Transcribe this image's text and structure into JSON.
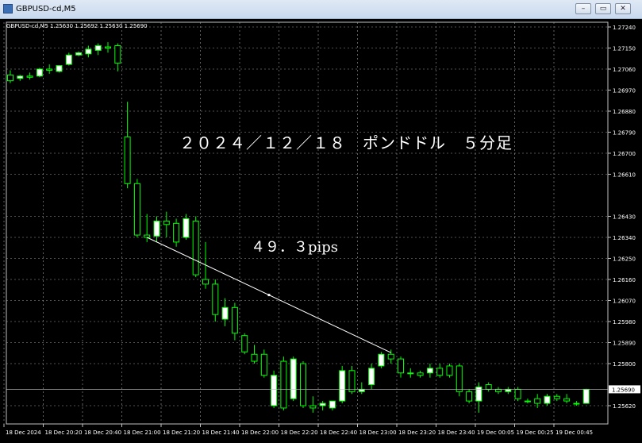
{
  "window": {
    "title": "GBPUSD-cd,M5",
    "buttons": [
      "minimize",
      "restore",
      "close"
    ]
  },
  "chart": {
    "info_line": "GBPUSD-cd,M5  1.25630 1.25692 1.25630 1.25690",
    "annotation_title": "２０２４／１２／１８　ポンドドル　５分足",
    "annotation_pips": "４９．３pips",
    "current_price": "1.25690",
    "colors": {
      "background": "#000000",
      "grid": "#a0a0a0",
      "bull": "#ffffff",
      "bear": "#000000",
      "wick": "#00ff00",
      "text": "#ffffff",
      "trendline": "#ffffff"
    }
  },
  "chart_data": {
    "type": "candlestick",
    "symbol": "GBPUSD-cd",
    "timeframe": "M5",
    "ylim": [
      1.2555,
      1.2728
    ],
    "price_ticks": [
      "1.27240",
      "1.27150",
      "1.27060",
      "1.26970",
      "1.26880",
      "1.26790",
      "1.26700",
      "1.26610",
      "1.26430",
      "1.26340",
      "1.26250",
      "1.26160",
      "1.26070",
      "1.25980",
      "1.25890",
      "1.25800",
      "1.25620"
    ],
    "time_labels": [
      "18 Dec 2024",
      "18 Dec 20:20",
      "18 Dec 20:40",
      "18 Dec 21:00",
      "18 Dec 21:20",
      "18 Dec 21:40",
      "18 Dec 22:00",
      "18 Dec 22:20",
      "18 Dec 22:40",
      "18 Dec 23:00",
      "18 Dec 23:20",
      "18 Dec 23:40",
      "19 Dec 00:05",
      "19 Dec 00:25",
      "19 Dec 00:45"
    ],
    "candles": [
      {
        "o": 1.27035,
        "h": 1.27055,
        "c": 1.2701,
        "l": 1.27
      },
      {
        "o": 1.2702,
        "h": 1.27035,
        "c": 1.2703,
        "l": 1.2701
      },
      {
        "o": 1.2703,
        "h": 1.27045,
        "c": 1.27025,
        "l": 1.27015
      },
      {
        "o": 1.2703,
        "h": 1.27065,
        "c": 1.2706,
        "l": 1.27025
      },
      {
        "o": 1.2706,
        "h": 1.2708,
        "c": 1.27055,
        "l": 1.2704
      },
      {
        "o": 1.2705,
        "h": 1.27075,
        "c": 1.27075,
        "l": 1.27045
      },
      {
        "o": 1.2708,
        "h": 1.2713,
        "c": 1.2712,
        "l": 1.27075
      },
      {
        "o": 1.2712,
        "h": 1.27135,
        "c": 1.2713,
        "l": 1.27115
      },
      {
        "o": 1.27125,
        "h": 1.2716,
        "c": 1.27145,
        "l": 1.2711
      },
      {
        "o": 1.2714,
        "h": 1.2717,
        "c": 1.2716,
        "l": 1.2712
      },
      {
        "o": 1.27155,
        "h": 1.27175,
        "c": 1.2715,
        "l": 1.2713
      },
      {
        "o": 1.2716,
        "h": 1.2717,
        "c": 1.27085,
        "l": 1.2705
      },
      {
        "o": 1.2677,
        "h": 1.2692,
        "c": 1.2657,
        "l": 1.2655
      },
      {
        "o": 1.2657,
        "h": 1.2659,
        "c": 1.2635,
        "l": 1.2634
      },
      {
        "o": 1.2635,
        "h": 1.2644,
        "c": 1.2634,
        "l": 1.2632
      },
      {
        "o": 1.26345,
        "h": 1.2643,
        "c": 1.2641,
        "l": 1.2632
      },
      {
        "o": 1.2641,
        "h": 1.2645,
        "c": 1.26395,
        "l": 1.2634
      },
      {
        "o": 1.264,
        "h": 1.2642,
        "c": 1.2632,
        "l": 1.263
      },
      {
        "o": 1.2634,
        "h": 1.2644,
        "c": 1.2642,
        "l": 1.2633
      },
      {
        "o": 1.2641,
        "h": 1.2643,
        "c": 1.2618,
        "l": 1.2617
      },
      {
        "o": 1.2616,
        "h": 1.2632,
        "c": 1.2614,
        "l": 1.2612
      },
      {
        "o": 1.2614,
        "h": 1.2616,
        "c": 1.2601,
        "l": 1.2598
      },
      {
        "o": 1.2599,
        "h": 1.2608,
        "c": 1.2604,
        "l": 1.2596
      },
      {
        "o": 1.2604,
        "h": 1.2606,
        "c": 1.2593,
        "l": 1.259
      },
      {
        "o": 1.2592,
        "h": 1.2593,
        "c": 1.2585,
        "l": 1.2584
      },
      {
        "o": 1.2584,
        "h": 1.2588,
        "c": 1.2581,
        "l": 1.258
      },
      {
        "o": 1.2584,
        "h": 1.2586,
        "c": 1.2575,
        "l": 1.2574
      },
      {
        "o": 1.2562,
        "h": 1.2577,
        "c": 1.2575,
        "l": 1.2561
      },
      {
        "o": 1.2581,
        "h": 1.2583,
        "c": 1.2561,
        "l": 1.256
      },
      {
        "o": 1.2565,
        "h": 1.2583,
        "c": 1.2582,
        "l": 1.2564
      },
      {
        "o": 1.258,
        "h": 1.2581,
        "c": 1.2562,
        "l": 1.2561
      },
      {
        "o": 1.2562,
        "h": 1.2566,
        "c": 1.2561,
        "l": 1.2559
      },
      {
        "o": 1.2562,
        "h": 1.2564,
        "c": 1.2563,
        "l": 1.256
      },
      {
        "o": 1.2561,
        "h": 1.2564,
        "c": 1.2564,
        "l": 1.256
      },
      {
        "o": 1.2564,
        "h": 1.2579,
        "c": 1.2577,
        "l": 1.2563
      },
      {
        "o": 1.2577,
        "h": 1.2579,
        "c": 1.2568,
        "l": 1.2567
      },
      {
        "o": 1.2568,
        "h": 1.2572,
        "c": 1.2569,
        "l": 1.2567
      },
      {
        "o": 1.2571,
        "h": 1.258,
        "c": 1.2578,
        "l": 1.2569
      },
      {
        "o": 1.2579,
        "h": 1.2585,
        "c": 1.2584,
        "l": 1.2578
      },
      {
        "o": 1.2584,
        "h": 1.2586,
        "c": 1.2582,
        "l": 1.258
      },
      {
        "o": 1.2582,
        "h": 1.2583,
        "c": 1.2576,
        "l": 1.2574
      },
      {
        "o": 1.2576,
        "h": 1.2578,
        "c": 1.2576,
        "l": 1.2574
      },
      {
        "o": 1.2576,
        "h": 1.2577,
        "c": 1.2575,
        "l": 1.2574
      },
      {
        "o": 1.2576,
        "h": 1.258,
        "c": 1.2578,
        "l": 1.2574
      },
      {
        "o": 1.2578,
        "h": 1.258,
        "c": 1.2575,
        "l": 1.2574
      },
      {
        "o": 1.2579,
        "h": 1.258,
        "c": 1.2575,
        "l": 1.2574
      },
      {
        "o": 1.2579,
        "h": 1.258,
        "c": 1.2568,
        "l": 1.2566
      },
      {
        "o": 1.2568,
        "h": 1.2569,
        "c": 1.2564,
        "l": 1.2563
      },
      {
        "o": 1.2564,
        "h": 1.2572,
        "c": 1.257,
        "l": 1.2559
      },
      {
        "o": 1.2571,
        "h": 1.2572,
        "c": 1.2569,
        "l": 1.2568
      },
      {
        "o": 1.2569,
        "h": 1.257,
        "c": 1.2568,
        "l": 1.2567
      },
      {
        "o": 1.2568,
        "h": 1.257,
        "c": 1.2569,
        "l": 1.2567
      },
      {
        "o": 1.2569,
        "h": 1.257,
        "c": 1.2565,
        "l": 1.2564
      },
      {
        "o": 1.2564,
        "h": 1.2565,
        "c": 1.2564,
        "l": 1.2563
      },
      {
        "o": 1.2565,
        "h": 1.2567,
        "c": 1.2563,
        "l": 1.2561
      },
      {
        "o": 1.2563,
        "h": 1.2567,
        "c": 1.2566,
        "l": 1.2562
      },
      {
        "o": 1.2566,
        "h": 1.2567,
        "c": 1.2565,
        "l": 1.2564
      },
      {
        "o": 1.2565,
        "h": 1.2567,
        "c": 1.2564,
        "l": 1.2563
      },
      {
        "o": 1.2563,
        "h": 1.2564,
        "c": 1.2563,
        "l": 1.2562
      },
      {
        "o": 1.2563,
        "h": 1.25692,
        "c": 1.2569,
        "l": 1.2563
      }
    ],
    "trendline": {
      "from_candle": 14,
      "from_price": 1.2634,
      "to_candle": 39,
      "to_price": 1.25847
    },
    "grid": true
  }
}
